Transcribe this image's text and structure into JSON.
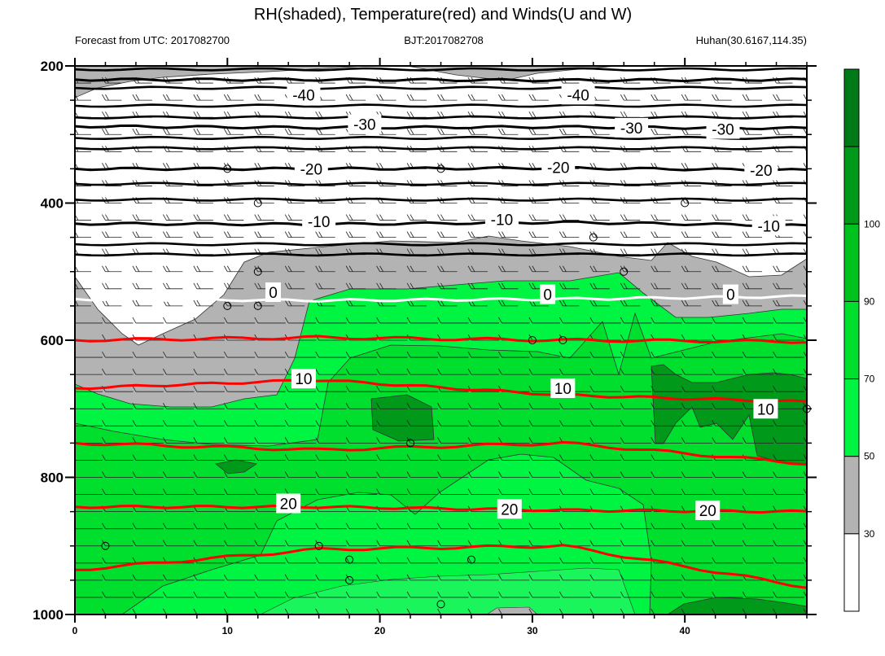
{
  "chart_data": {
    "type": "contour",
    "title": "RH(shaded), Temperature(red) and Winds(U and W)",
    "subtitle_left": "Forecast from UTC: 2017082700",
    "subtitle_center": "BJT:2017082708",
    "subtitle_right": "Huhan(30.6167,114.35)",
    "x_axis": {
      "range": [
        0,
        48
      ],
      "ticks": [
        0,
        10,
        20,
        30,
        40
      ],
      "tick_labels": [
        "0",
        "10",
        "20",
        "30",
        "40"
      ]
    },
    "y_axis": {
      "range": [
        200,
        1000
      ],
      "ticks": [
        200,
        400,
        600,
        800,
        1000
      ],
      "tick_labels": [
        "200",
        "400",
        "600",
        "800",
        "1000"
      ],
      "inverted": true
    },
    "colorbar": {
      "labels": [
        "30",
        "50",
        "70",
        "90",
        "100"
      ],
      "levels": [
        30,
        50,
        70,
        90,
        95,
        100
      ],
      "colors": [
        "#ffffff",
        "#b3b3b3",
        "#00f542",
        "#00de2e",
        "#00c21e",
        "#00991a",
        "#007a17"
      ]
    },
    "temperature_contours": [
      {
        "label": "-40",
        "color": "#000000",
        "pressure": [
          220,
          220,
          221,
          220
        ]
      },
      {
        "label": "-30",
        "color": "#000000",
        "pressure": [
          288,
          290,
          289,
          291
        ]
      },
      {
        "label": "-20",
        "color": "#000000",
        "pressure": [
          350,
          350,
          349,
          352
        ]
      },
      {
        "label": "-10",
        "color": "#000000",
        "pressure": [
          430,
          431,
          428,
          433
        ]
      },
      {
        "label": "0",
        "color": "#ffffff",
        "pressure": [
          540,
          542,
          540,
          536
        ]
      },
      {
        "label": "10",
        "color": "#ff0000",
        "pressure": [
          670,
          658,
          680,
          690
        ]
      },
      {
        "label": "20",
        "color": "#ff0000",
        "pressure": [
          843,
          843,
          848,
          850
        ]
      }
    ],
    "contour_labels": [
      {
        "text": "-40",
        "x": 15,
        "p": 242
      },
      {
        "text": "-40",
        "x": 33,
        "p": 242
      },
      {
        "text": "-30",
        "x": 19,
        "p": 285
      },
      {
        "text": "-30",
        "x": 36.5,
        "p": 290
      },
      {
        "text": "-30",
        "x": 42.5,
        "p": 292
      },
      {
        "text": "-20",
        "x": 15.5,
        "p": 350
      },
      {
        "text": "-20",
        "x": 31.7,
        "p": 348
      },
      {
        "text": "-20",
        "x": 45,
        "p": 352
      },
      {
        "text": "-10",
        "x": 16,
        "p": 427
      },
      {
        "text": "-10",
        "x": 28,
        "p": 424
      },
      {
        "text": "-10",
        "x": 45.5,
        "p": 433
      },
      {
        "text": "0",
        "x": 13,
        "p": 530
      },
      {
        "text": "0",
        "x": 31,
        "p": 533
      },
      {
        "text": "0",
        "x": 43,
        "p": 533
      },
      {
        "text": "10",
        "x": 15,
        "p": 656
      },
      {
        "text": "10",
        "x": 32,
        "p": 670
      },
      {
        "text": "10",
        "x": 45.3,
        "p": 700
      },
      {
        "text": "20",
        "x": 14,
        "p": 838
      },
      {
        "text": "20",
        "x": 28.5,
        "p": 846
      },
      {
        "text": "20",
        "x": 41.5,
        "p": 848
      }
    ]
  }
}
